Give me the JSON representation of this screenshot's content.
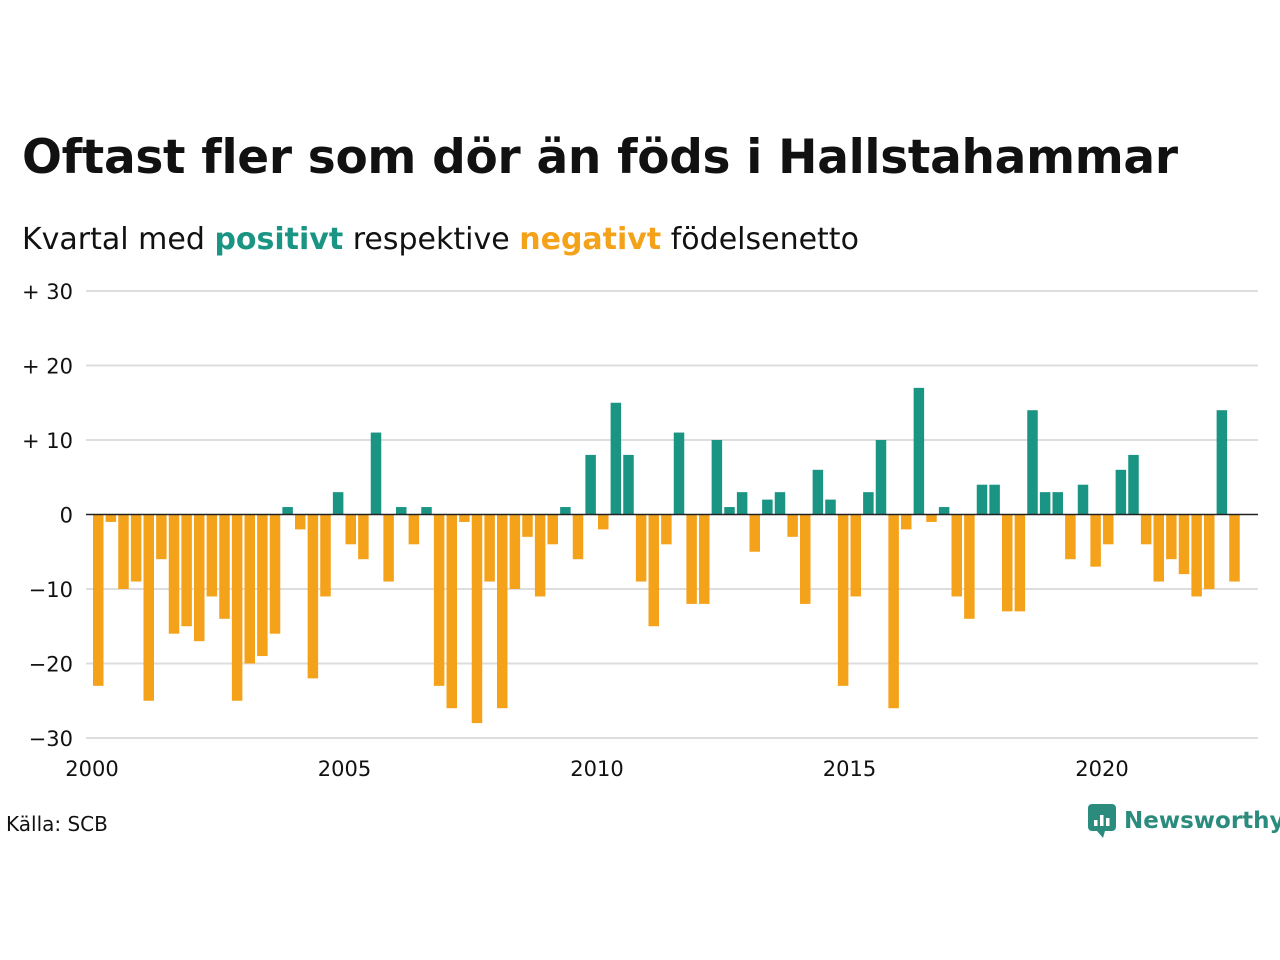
{
  "header": {
    "title": "Oftast fler som dör än föds i Hallstahammar",
    "subtitle_prefix": "Kvartal med",
    "subtitle_positive": "positivt",
    "subtitle_middle": "respektive",
    "subtitle_negative": "negativt",
    "subtitle_suffix": "födelsenetto"
  },
  "footer": {
    "source": "Källa: SCB",
    "brand": "Newsworthy"
  },
  "colors": {
    "positive": "#1a9483",
    "negative": "#f5a21b",
    "grid": "#dddddd"
  },
  "chart_data": {
    "type": "bar",
    "x_start": 2000,
    "x_step": 0.25,
    "ylim": [
      -30,
      30
    ],
    "yticks": [
      30,
      20,
      10,
      0,
      -10,
      -20,
      -30
    ],
    "ytick_labels": [
      "+ 30",
      "+ 20",
      "+ 10",
      "0",
      "−10",
      "−20",
      "−30"
    ],
    "xticks": [
      2000,
      2005,
      2010,
      2015,
      2020
    ],
    "xtick_labels": [
      "2000",
      "2005",
      "2010",
      "2015",
      "2020"
    ],
    "grid": true,
    "values": [
      -23,
      -1,
      -10,
      -9,
      -25,
      -6,
      -16,
      -15,
      -17,
      -11,
      -14,
      -25,
      -20,
      -19,
      -16,
      1,
      -2,
      -22,
      -11,
      3,
      -4,
      -6,
      11,
      -9,
      1,
      -4,
      1,
      -23,
      -26,
      -1,
      -28,
      -9,
      -26,
      -10,
      -3,
      -11,
      -4,
      1,
      -6,
      8,
      -2,
      15,
      8,
      -9,
      -15,
      -4,
      11,
      -12,
      -12,
      10,
      1,
      3,
      -5,
      2,
      3,
      -3,
      -12,
      6,
      2,
      -23,
      -11,
      3,
      10,
      -26,
      -2,
      17,
      -1,
      1,
      -11,
      -14,
      4,
      4,
      -13,
      -13,
      14,
      3,
      3,
      -6,
      4,
      -7,
      -4,
      6,
      8,
      -4,
      -9,
      -6,
      -8,
      -11,
      -10,
      14,
      -9
    ]
  }
}
